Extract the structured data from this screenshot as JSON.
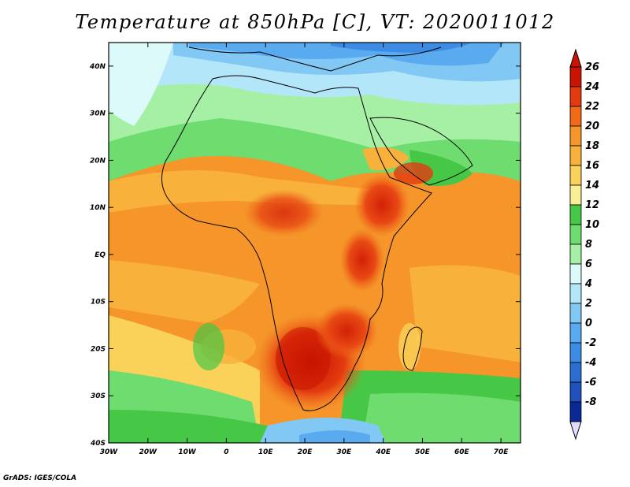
{
  "title": "Temperature at 850hPa [C], VT: 2020011012",
  "footer": "GrADS: IGES/COLA",
  "map": {
    "lon_range": [
      -30,
      75
    ],
    "lat_range": [
      -40,
      45
    ],
    "lon_ticks": [
      {
        "value": -30,
        "label": "30W"
      },
      {
        "value": -20,
        "label": "20W"
      },
      {
        "value": -10,
        "label": "10W"
      },
      {
        "value": 0,
        "label": "0"
      },
      {
        "value": 10,
        "label": "10E"
      },
      {
        "value": 20,
        "label": "20E"
      },
      {
        "value": 30,
        "label": "30E"
      },
      {
        "value": 40,
        "label": "40E"
      },
      {
        "value": 50,
        "label": "50E"
      },
      {
        "value": 60,
        "label": "60E"
      },
      {
        "value": 70,
        "label": "70E"
      }
    ],
    "lat_ticks": [
      {
        "value": 40,
        "label": "40N"
      },
      {
        "value": 30,
        "label": "30N"
      },
      {
        "value": 20,
        "label": "20N"
      },
      {
        "value": 10,
        "label": "10N"
      },
      {
        "value": 0,
        "label": "EQ"
      },
      {
        "value": -10,
        "label": "10S"
      },
      {
        "value": -20,
        "label": "20S"
      },
      {
        "value": -30,
        "label": "30S"
      },
      {
        "value": -40,
        "label": "40S"
      }
    ]
  },
  "colorbar": {
    "levels": [
      {
        "label": "26",
        "color": "#c81400"
      },
      {
        "label": "24",
        "color": "#e33a10"
      },
      {
        "label": "22",
        "color": "#f06a18"
      },
      {
        "label": "20",
        "color": "#f5952a"
      },
      {
        "label": "18",
        "color": "#f8b23c"
      },
      {
        "label": "16",
        "color": "#fad25a"
      },
      {
        "label": "14",
        "color": "#f8ee96"
      },
      {
        "label": "12",
        "color": "#46c846"
      },
      {
        "label": "10",
        "color": "#6edc6e"
      },
      {
        "label": "8",
        "color": "#a6f0a6"
      },
      {
        "label": "6",
        "color": "#dcfafa"
      },
      {
        "label": "4",
        "color": "#b4e6fa"
      },
      {
        "label": "2",
        "color": "#82c8f5"
      },
      {
        "label": "0",
        "color": "#5aaaf0"
      },
      {
        "label": "-2",
        "color": "#3c8ce6"
      },
      {
        "label": "-4",
        "color": "#2a6ed2"
      },
      {
        "label": "-6",
        "color": "#1e50be"
      },
      {
        "label": "-8",
        "color": "#0a2896"
      }
    ],
    "overflow_high_color": "#c81400",
    "underflow_low_color": "#e0ddff"
  }
}
